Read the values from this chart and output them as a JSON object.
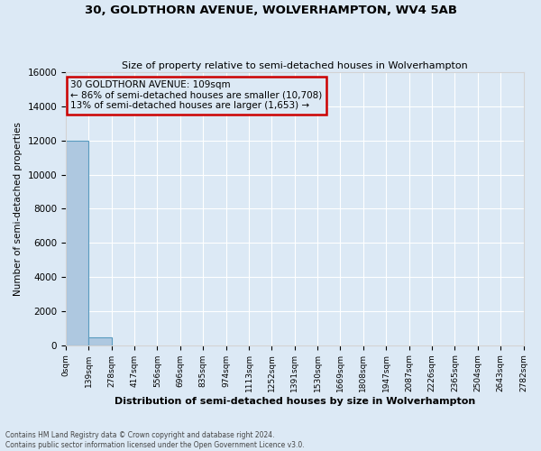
{
  "title": "30, GOLDTHORN AVENUE, WOLVERHAMPTON, WV4 5AB",
  "subtitle": "Size of property relative to semi-detached houses in Wolverhampton",
  "xlabel": "Distribution of semi-detached houses by size in Wolverhampton",
  "ylabel": "Number of semi-detached properties",
  "footer1": "Contains HM Land Registry data © Crown copyright and database right 2024.",
  "footer2": "Contains public sector information licensed under the Open Government Licence v3.0.",
  "ylim": [
    0,
    16000
  ],
  "bin_edges": [
    0,
    139,
    278,
    417,
    556,
    696,
    835,
    974,
    1113,
    1252,
    1391,
    1530,
    1669,
    1808,
    1947,
    2087,
    2226,
    2365,
    2504,
    2643,
    2782
  ],
  "bar_heights": [
    12000,
    450,
    0,
    0,
    0,
    0,
    0,
    0,
    0,
    0,
    0,
    0,
    0,
    0,
    0,
    0,
    0,
    0,
    0,
    0
  ],
  "bar_color": "#aec8e0",
  "bar_edge_color": "#5a9bbf",
  "background_color": "#dce9f5",
  "property_size_sqm": 109,
  "property_bin_index": 0,
  "annotation_title": "30 GOLDTHORN AVENUE: 109sqm",
  "annotation_line2": "← 86% of semi-detached houses are smaller (10,708)",
  "annotation_line3": "13% of semi-detached houses are larger (1,653) →",
  "annotation_box_color": "#cc0000",
  "yticks": [
    0,
    2000,
    4000,
    6000,
    8000,
    10000,
    12000,
    14000,
    16000
  ],
  "xtick_labels": [
    "0sqm",
    "139sqm",
    "278sqm",
    "417sqm",
    "556sqm",
    "696sqm",
    "835sqm",
    "974sqm",
    "1113sqm",
    "1252sqm",
    "1391sqm",
    "1530sqm",
    "1669sqm",
    "1808sqm",
    "1947sqm",
    "2087sqm",
    "2226sqm",
    "2365sqm",
    "2504sqm",
    "2643sqm",
    "2782sqm"
  ]
}
